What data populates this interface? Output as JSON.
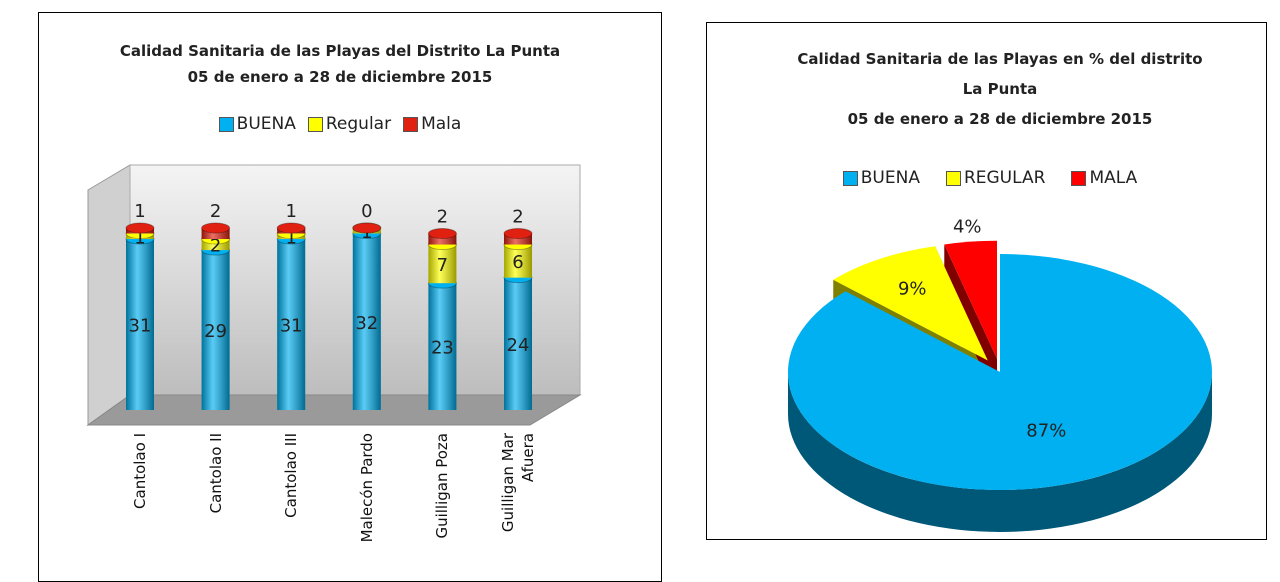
{
  "chart_data": [
    {
      "type": "bar",
      "stacked": true,
      "title": "Calidad Sanitaria de las Playas del Distrito La Punta",
      "subtitle": "05 de enero a 28 de diciembre 2015",
      "categories": [
        "Cantolao I",
        "Cantolao II",
        "Cantolao III",
        "Malecón Pardo",
        "Guilligan Poza",
        "Guilligan Mar Afuera"
      ],
      "series": [
        {
          "name": "BUENA",
          "color": "#00b0f0",
          "values": [
            31,
            29,
            31,
            32,
            23,
            24
          ]
        },
        {
          "name": "Regular",
          "color": "#ffff00",
          "values": [
            1,
            2,
            1,
            1,
            7,
            6
          ]
        },
        {
          "name": "Mala",
          "color": "#e02010",
          "values": [
            1,
            2,
            1,
            0,
            2,
            2
          ]
        }
      ]
    },
    {
      "type": "pie",
      "title": "Calidad Sanitaria de las Playas en % del distrito La Punta",
      "subtitle": "05 de enero a 28 de diciembre 2015",
      "categories": [
        "BUENA",
        "REGULAR",
        "MALA"
      ],
      "values": [
        87,
        9,
        4
      ],
      "value_labels": [
        "87%",
        "9%",
        "4%"
      ],
      "colors": [
        "#00b0f0",
        "#ffff00",
        "#ff0000"
      ]
    }
  ]
}
